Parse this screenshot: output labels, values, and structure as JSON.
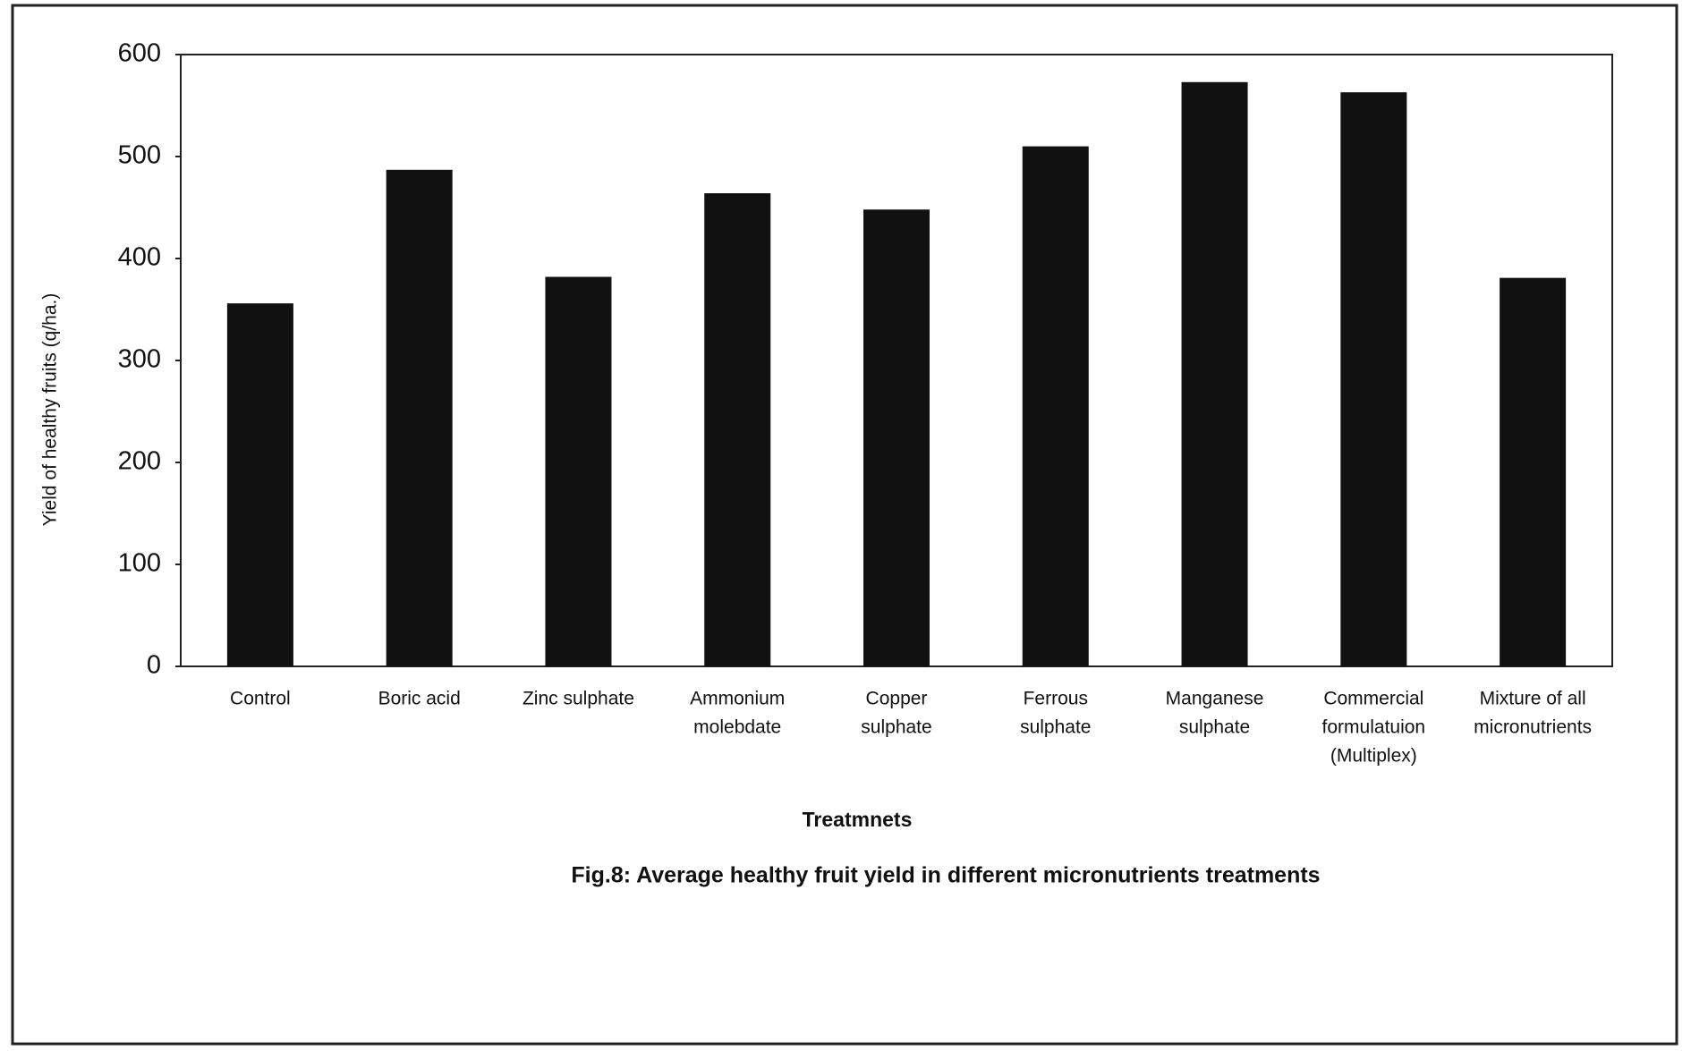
{
  "chart_data": {
    "type": "bar",
    "title": "Fig.8: Average healthy fruit yield in different micronutrients treatments",
    "x_label": "Treatmnets",
    "y_label": "Yield of healthy fruits (q/ha.)",
    "categories": [
      [
        "Control"
      ],
      [
        "Boric acid"
      ],
      [
        "Zinc sulphate"
      ],
      [
        "Ammonium",
        "molebdate"
      ],
      [
        "Copper",
        "sulphate"
      ],
      [
        "Ferrous",
        "sulphate"
      ],
      [
        "Manganese",
        "sulphate"
      ],
      [
        "Commercial",
        "formulatuion",
        "(Multiplex)"
      ],
      [
        "Mixture of all",
        "micronutrients"
      ]
    ],
    "values": [
      356,
      487,
      382,
      464,
      448,
      510,
      573,
      563,
      381
    ],
    "color": "#111111",
    "ylim": [
      0,
      600
    ],
    "yticks": [
      0,
      100,
      200,
      300,
      400,
      500,
      600
    ],
    "grid": false
  }
}
